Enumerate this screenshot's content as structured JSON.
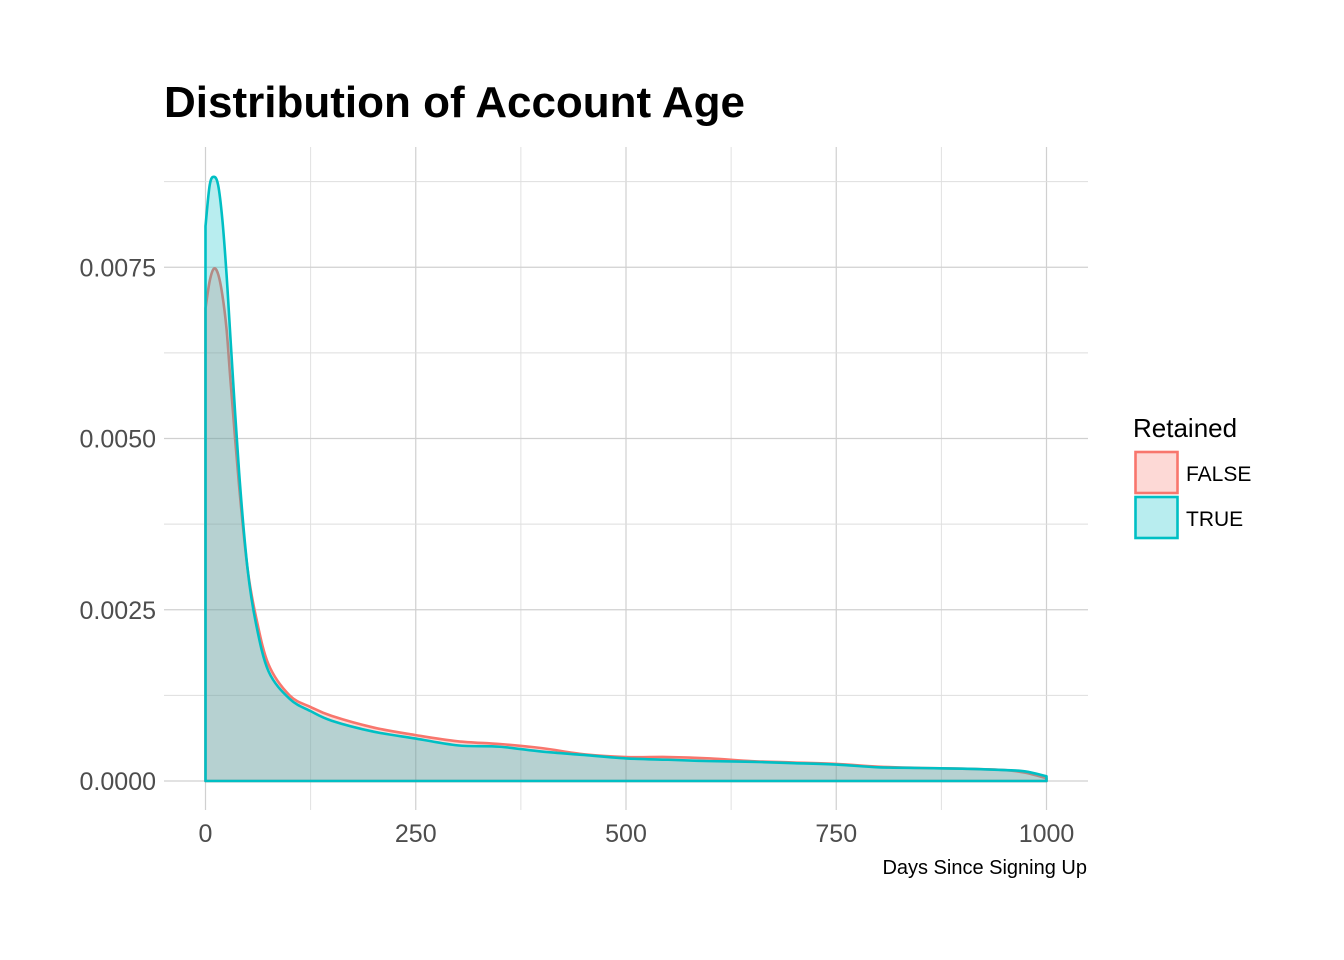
{
  "chart_data": {
    "type": "area",
    "title": "Distribution of Account Age",
    "xlabel": "Days Since Signing Up",
    "ylabel": "",
    "xlim": [
      0,
      1000
    ],
    "ylim": [
      0,
      0.0088
    ],
    "x_ticks": [
      0,
      250,
      500,
      750,
      1000
    ],
    "x_tick_labels": [
      "0",
      "250",
      "500",
      "750",
      "1000"
    ],
    "y_ticks": [
      0,
      0.0025,
      0.005,
      0.0075
    ],
    "y_tick_labels": [
      "0.0000",
      "0.0025",
      "0.0050",
      "0.0075"
    ],
    "grid": true,
    "legend": {
      "title": "Retained",
      "position": "right"
    },
    "series": [
      {
        "name": "FALSE",
        "color": "#F8766D",
        "fill": "#F8766D",
        "x": [
          0,
          5,
          10,
          15,
          20,
          25,
          30,
          40,
          50,
          60,
          75,
          100,
          125,
          150,
          200,
          250,
          300,
          350,
          400,
          450,
          500,
          550,
          600,
          650,
          700,
          750,
          800,
          850,
          900,
          950,
          975,
          1000
        ],
        "y": [
          0.0069,
          0.0073,
          0.00748,
          0.0074,
          0.0071,
          0.0066,
          0.0058,
          0.0043,
          0.0031,
          0.0024,
          0.0017,
          0.00125,
          0.00108,
          0.00095,
          0.00078,
          0.00067,
          0.00058,
          0.00054,
          0.00048,
          0.00039,
          0.00035,
          0.00035,
          0.00033,
          0.00029,
          0.00027,
          0.00025,
          0.00021,
          0.00019,
          0.00018,
          0.00016,
          0.00012,
          4e-05
        ]
      },
      {
        "name": "TRUE",
        "color": "#00BFC4",
        "fill": "#00BFC4",
        "x": [
          0,
          5,
          10,
          15,
          20,
          25,
          30,
          40,
          50,
          60,
          75,
          100,
          125,
          150,
          200,
          250,
          300,
          350,
          400,
          450,
          500,
          550,
          600,
          650,
          700,
          750,
          800,
          850,
          900,
          950,
          975,
          1000
        ],
        "y": [
          0.0081,
          0.0087,
          0.00882,
          0.0087,
          0.0082,
          0.0074,
          0.0064,
          0.0045,
          0.0031,
          0.0023,
          0.0016,
          0.0012,
          0.00102,
          0.00088,
          0.00072,
          0.00062,
          0.00052,
          0.0005,
          0.00043,
          0.00038,
          0.00033,
          0.00031,
          0.00029,
          0.00028,
          0.00026,
          0.00024,
          0.0002,
          0.00019,
          0.00018,
          0.00016,
          0.00014,
          7e-05
        ]
      }
    ]
  }
}
